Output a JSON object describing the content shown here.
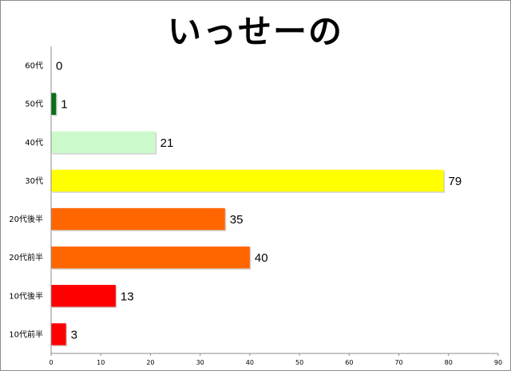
{
  "chart_data": {
    "type": "bar",
    "orientation": "horizontal",
    "title": "いっせーの",
    "categories": [
      "60代",
      "50代",
      "40代",
      "30代",
      "20代後半",
      "20代前半",
      "10代後半",
      "10代前半"
    ],
    "values": [
      0,
      1,
      21,
      79,
      35,
      40,
      13,
      3
    ],
    "colors": [
      "#006600",
      "#0a6e14",
      "#ccf9cc",
      "#ffff00",
      "#ff6600",
      "#ff6600",
      "#ff0000",
      "#ff0000"
    ],
    "xlim": [
      0,
      90
    ],
    "xticks": [
      0,
      10,
      20,
      30,
      40,
      50,
      60,
      70,
      80,
      90
    ],
    "xlabel": "",
    "ylabel": "",
    "grid": false,
    "legend": "none"
  }
}
